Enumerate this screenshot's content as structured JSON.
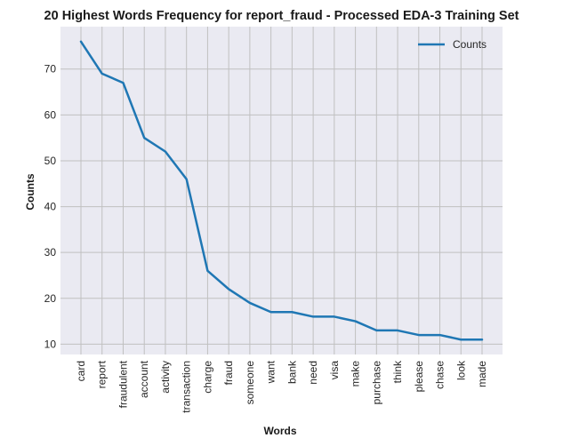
{
  "chart_data": {
    "type": "line",
    "title": "20 Highest Words Frequency for report_fraud - Processed EDA-3 Training Set",
    "xlabel": "Words",
    "ylabel": "Counts",
    "categories": [
      "card",
      "report",
      "fraudulent",
      "account",
      "activity",
      "transaction",
      "charge",
      "fraud",
      "someone",
      "want",
      "bank",
      "need",
      "visa",
      "make",
      "purchase",
      "think",
      "please",
      "chase",
      "look",
      "made"
    ],
    "series": [
      {
        "name": "Counts",
        "color": "#1f77b4",
        "values": [
          76,
          69,
          67,
          55,
          52,
          46,
          26,
          22,
          19,
          17,
          17,
          16,
          16,
          15,
          13,
          13,
          12,
          12,
          11,
          11
        ]
      }
    ],
    "yticks": [
      10,
      20,
      30,
      40,
      50,
      60,
      70
    ],
    "ylim": [
      7.75,
      79.25
    ],
    "grid": true,
    "legend_position": "upper-right",
    "background_color": "#eaeaf2",
    "grid_color": "#c0c0c0"
  }
}
